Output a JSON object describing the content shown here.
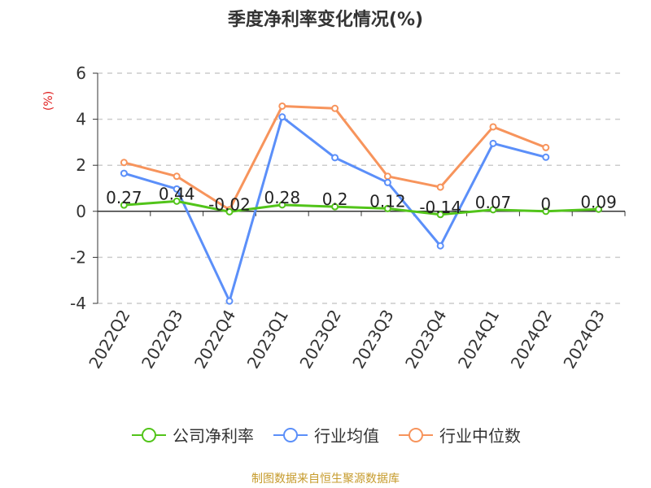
{
  "title": "季度净利率变化情况(%)",
  "source": "制图数据来自恒生聚源数据库",
  "chart_data": {
    "type": "line",
    "title": "季度净利率变化情况(%)",
    "ylabel": "(%)",
    "xlabel": "",
    "ylim": [
      -4,
      6
    ],
    "yticks": [
      -4,
      -2,
      0,
      2,
      4,
      6
    ],
    "grid": true,
    "legend_position": "bottom",
    "categories": [
      "2022Q2",
      "2022Q3",
      "2022Q4",
      "2023Q1",
      "2023Q2",
      "2023Q3",
      "2023Q4",
      "2024Q1",
      "2024Q2",
      "2024Q3"
    ],
    "series": [
      {
        "name": "公司净利率",
        "color": "#52c41a",
        "show_labels": true,
        "values": [
          0.27,
          0.44,
          -0.02,
          0.28,
          0.2,
          0.12,
          -0.14,
          0.07,
          0,
          0.09
        ]
      },
      {
        "name": "行业均值",
        "color": "#5b8ff9",
        "show_labels": false,
        "values": [
          1.65,
          0.97,
          -3.9,
          4.1,
          2.33,
          1.25,
          -1.5,
          2.95,
          2.35,
          null
        ]
      },
      {
        "name": "行业中位数",
        "color": "#f7945c",
        "show_labels": false,
        "values": [
          2.12,
          1.52,
          0.07,
          4.57,
          4.47,
          1.52,
          1.05,
          3.67,
          2.77,
          null
        ]
      }
    ]
  }
}
